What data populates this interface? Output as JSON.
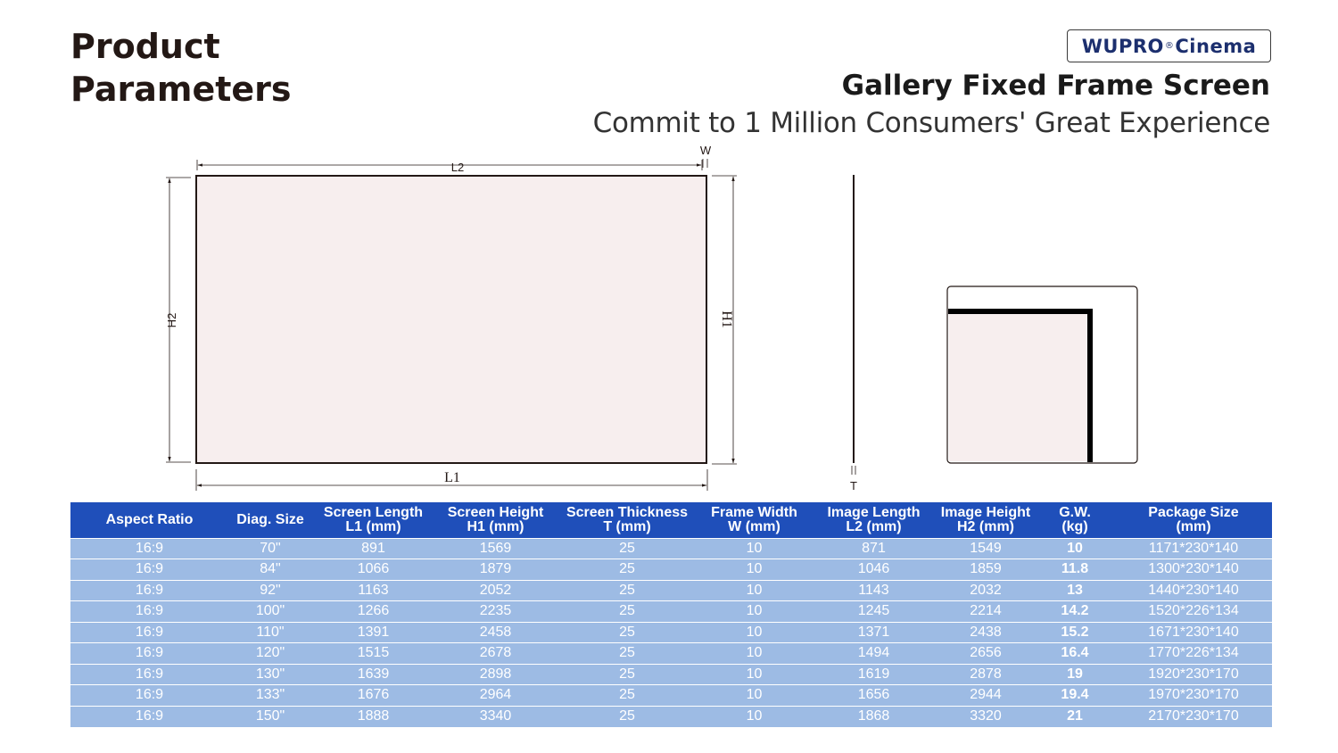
{
  "header": {
    "title_line1": "Product",
    "title_line2": "Parameters",
    "brand_main": "WUPRO",
    "brand_reg": "®",
    "brand_suffix": "Cinema",
    "product_name": "Gallery Fixed Frame Screen",
    "tagline": "Commit to 1 Million Consumers' Great Experience"
  },
  "diagram": {
    "labels": {
      "l2": "L2",
      "l1": "L1",
      "h2": "H2",
      "h1": "H1",
      "w": "W",
      "t": "T"
    }
  },
  "table": {
    "headers": [
      [
        "Aspect Ratio"
      ],
      [
        "Diag. Size"
      ],
      [
        "Screen Length",
        "L1 (mm)"
      ],
      [
        "Screen Height",
        "H1 (mm)"
      ],
      [
        "Screen Thickness",
        "T (mm)"
      ],
      [
        "Frame Width",
        "W (mm)"
      ],
      [
        "Image Length",
        "L2 (mm)"
      ],
      [
        "Image Height",
        "H2 (mm)"
      ],
      [
        "G.W.",
        "(kg)"
      ],
      [
        "Package Size",
        "(mm)"
      ]
    ],
    "rows": [
      [
        "16:9",
        "70\"",
        "891",
        "1569",
        "25",
        "10",
        "871",
        "1549",
        "10",
        "1171*230*140"
      ],
      [
        "16:9",
        "84\"",
        "1066",
        "1879",
        "25",
        "10",
        "1046",
        "1859",
        "11.8",
        "1300*230*140"
      ],
      [
        "16:9",
        "92\"",
        "1163",
        "2052",
        "25",
        "10",
        "1143",
        "2032",
        "13",
        "1440*230*140"
      ],
      [
        "16:9",
        "100\"",
        "1266",
        "2235",
        "25",
        "10",
        "1245",
        "2214",
        "14.2",
        "1520*226*134"
      ],
      [
        "16:9",
        "110\"",
        "1391",
        "2458",
        "25",
        "10",
        "1371",
        "2438",
        "15.2",
        "1671*230*140"
      ],
      [
        "16:9",
        "120\"",
        "1515",
        "2678",
        "25",
        "10",
        "1494",
        "2656",
        "16.4",
        "1770*226*134"
      ],
      [
        "16:9",
        "130\"",
        "1639",
        "2898",
        "25",
        "10",
        "1619",
        "2878",
        "19",
        "1920*230*170"
      ],
      [
        "16:9",
        "133\"",
        "1676",
        "2964",
        "25",
        "10",
        "1656",
        "2944",
        "19.4",
        "1970*230*170"
      ],
      [
        "16:9",
        "150\"",
        "1888",
        "3340",
        "25",
        "10",
        "1868",
        "3320",
        "21",
        "2170*230*170"
      ]
    ]
  },
  "colors": {
    "header_bg": "#1f4fba",
    "row_bg": "#9dbbe4",
    "screen_fill": "#f7eeee",
    "text_dark": "#231815",
    "brand": "#1c2f6e"
  }
}
